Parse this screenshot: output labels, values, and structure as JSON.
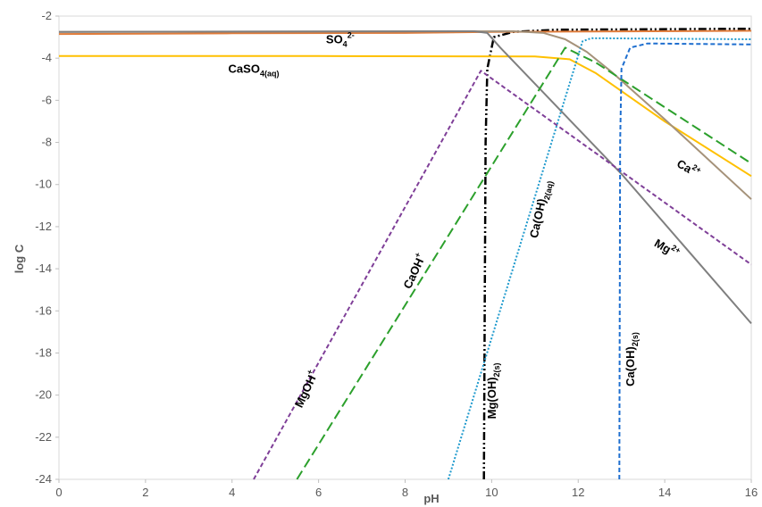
{
  "chart_data": {
    "type": "line",
    "xlabel": "pH",
    "ylabel": "log C",
    "xlim": [
      0,
      16
    ],
    "ylim": [
      -24,
      -2
    ],
    "x_ticks": [
      "0",
      "2",
      "4",
      "6",
      "8",
      "10",
      "12",
      "14",
      "16"
    ],
    "y_ticks": [
      "-2",
      "-4",
      "-6",
      "-8",
      "-10",
      "-12",
      "-14",
      "-16",
      "-18",
      "-20",
      "-22",
      "-24"
    ],
    "grid": false,
    "series": [
      {
        "name": "Mg(OH)2(s)",
        "color": "#000000",
        "dash": "dashdotdot",
        "points": [
          [
            9.82,
            -24
          ],
          [
            9.84,
            -16
          ],
          [
            9.86,
            -8
          ],
          [
            9.9,
            -4.5
          ],
          [
            10.05,
            -3.0
          ],
          [
            10.5,
            -2.75
          ],
          [
            11.5,
            -2.65
          ],
          [
            16,
            -2.6
          ]
        ]
      },
      {
        "name": "SO4 2-",
        "color": "#E07B39",
        "dash": "solid",
        "points": [
          [
            0,
            -2.85
          ],
          [
            4,
            -2.82
          ],
          [
            8,
            -2.8
          ],
          [
            10,
            -2.75
          ],
          [
            16,
            -2.7
          ]
        ]
      },
      {
        "name": "CaSO4(aq)",
        "color": "#FFC000",
        "dash": "solid",
        "points": [
          [
            0,
            -3.9
          ],
          [
            6,
            -3.9
          ],
          [
            11,
            -3.92
          ],
          [
            11.8,
            -4.05
          ],
          [
            12.4,
            -4.7
          ],
          [
            14,
            -7.0
          ],
          [
            16,
            -9.6
          ]
        ]
      },
      {
        "name": "Ca2+",
        "color": "#A5927A",
        "dash": "solid",
        "points": [
          [
            0,
            -2.75
          ],
          [
            10.5,
            -2.72
          ],
          [
            11.2,
            -2.8
          ],
          [
            11.7,
            -3.1
          ],
          [
            12.2,
            -3.7
          ],
          [
            12.8,
            -4.7
          ],
          [
            14,
            -6.9
          ],
          [
            16,
            -10.7
          ]
        ]
      },
      {
        "name": "Mg2+",
        "color": "#7F7F7F",
        "dash": "solid",
        "points": [
          [
            0,
            -2.75
          ],
          [
            9.6,
            -2.72
          ],
          [
            9.9,
            -2.8
          ],
          [
            10.2,
            -3.5
          ],
          [
            13,
            -9.5
          ],
          [
            16,
            -16.6
          ]
        ]
      },
      {
        "name": "MgOH+",
        "color": "#7F3F98",
        "dash": "dash",
        "points": [
          [
            4.5,
            -24
          ],
          [
            9.75,
            -4.6
          ],
          [
            16,
            -13.8
          ]
        ]
      },
      {
        "name": "CaOH+",
        "color": "#2CA02C",
        "dash": "longdash",
        "points": [
          [
            5.5,
            -24
          ],
          [
            11.7,
            -3.5
          ],
          [
            12.4,
            -4.2
          ],
          [
            16,
            -9.0
          ]
        ]
      },
      {
        "name": "Ca(OH)2(aq)",
        "color": "#1F9ACD",
        "dash": "dot",
        "points": [
          [
            9.0,
            -24
          ],
          [
            12.1,
            -3.2
          ],
          [
            12.3,
            -3.05
          ],
          [
            16,
            -3.1
          ]
        ]
      },
      {
        "name": "Ca(OH)2(s)",
        "color": "#1F6FCF",
        "dash": "dash",
        "points": [
          [
            12.95,
            -24
          ],
          [
            12.97,
            -8
          ],
          [
            13.0,
            -4.5
          ],
          [
            13.2,
            -3.5
          ],
          [
            13.6,
            -3.3
          ],
          [
            16,
            -3.35
          ]
        ]
      }
    ],
    "annotations": [
      {
        "base": "SO",
        "sub": "4",
        "sup": "2-",
        "x": 6.5,
        "y": -3.3,
        "rotate": 0
      },
      {
        "base": "CaSO",
        "sub": "4(aq)",
        "sup": "",
        "x": 4.5,
        "y": -4.7,
        "rotate": 0
      },
      {
        "base": "Ca",
        "sub": "",
        "sup": "2+",
        "x": 14.5,
        "y": -9.4,
        "rotate": 30
      },
      {
        "base": "Mg",
        "sub": "",
        "sup": "2+",
        "x": 14.0,
        "y": -13.2,
        "rotate": 30
      },
      {
        "base": "MgOH",
        "sub": "",
        "sup": "+",
        "x": 5.8,
        "y": -19.8,
        "rotate": -65
      },
      {
        "base": "CaOH",
        "sub": "",
        "sup": "+",
        "x": 8.3,
        "y": -14.2,
        "rotate": -65
      },
      {
        "base": "Ca(OH)",
        "sub": "2(aq)",
        "sup": "",
        "x": 11.2,
        "y": -11.2,
        "rotate": -78
      },
      {
        "base": "Mg(OH)",
        "sub": "2(s)",
        "sup": "",
        "x": 10.1,
        "y": -19.8,
        "rotate": -90
      },
      {
        "base": "Ca(OH)",
        "sub": "2(s)",
        "sup": "",
        "x": 13.3,
        "y": -18.3,
        "rotate": -90
      }
    ]
  }
}
